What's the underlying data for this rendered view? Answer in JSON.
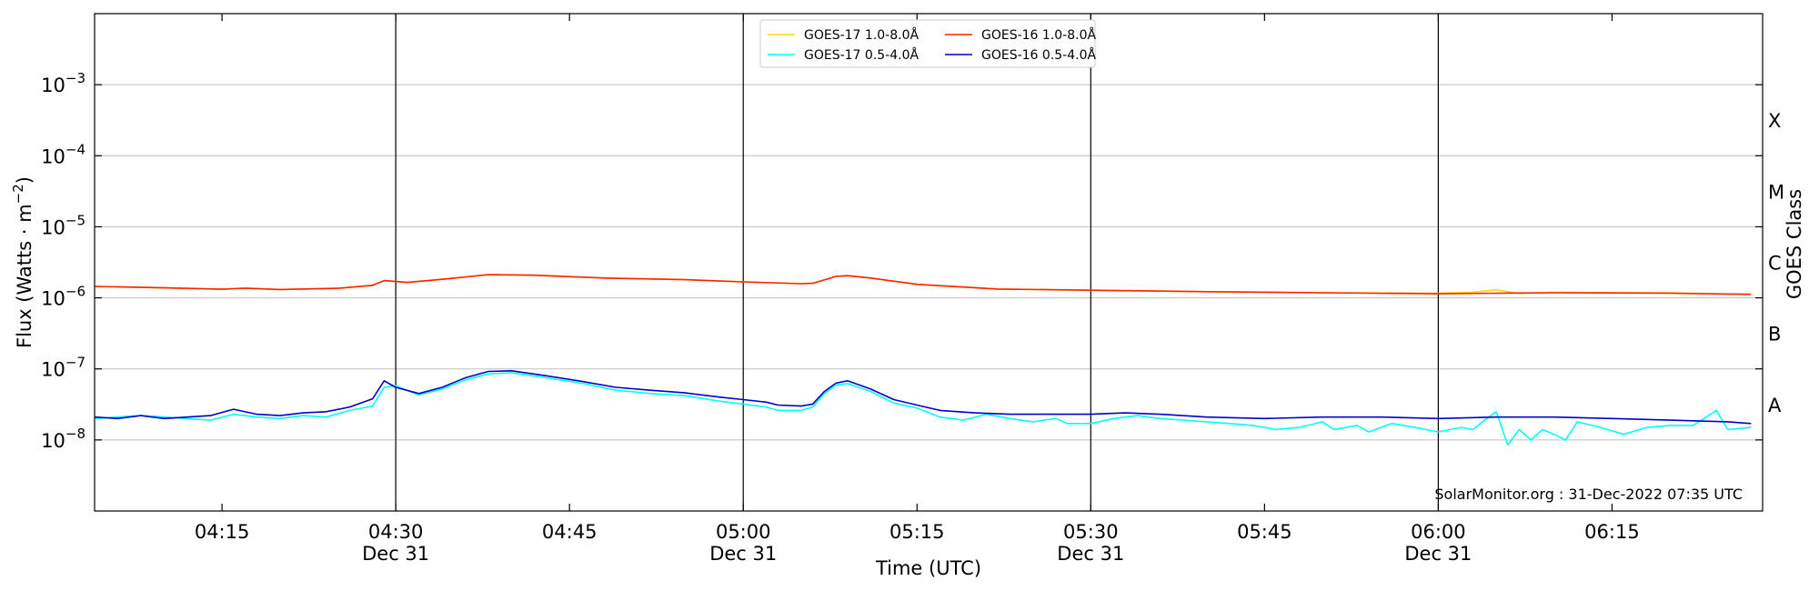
{
  "chart_data": {
    "type": "line",
    "xlabel": "Time (UTC)",
    "ylabel_main": "Flux (Watts · m",
    "ylabel_sup": "−2",
    "ylabel_close": ")",
    "right_ylabel": "GOES Class",
    "credit": "SolarMonitor.org : 31-Dec-2022 07:35 UTC",
    "xlim": [
      "04:04",
      "06:28"
    ],
    "ylim": [
      1e-09,
      0.01
    ],
    "yscale": "log",
    "y_ticks": [
      {
        "value": 1e-08,
        "base": "10",
        "exp": "−8"
      },
      {
        "value": 1e-07,
        "base": "10",
        "exp": "−7"
      },
      {
        "value": 1e-06,
        "base": "10",
        "exp": "−6"
      },
      {
        "value": 1e-05,
        "base": "10",
        "exp": "−5"
      },
      {
        "value": 0.0001,
        "base": "10",
        "exp": "−4"
      },
      {
        "value": 0.001,
        "base": "10",
        "exp": "−3"
      }
    ],
    "x_ticks": [
      {
        "time": "04:15",
        "label": "04:15",
        "date": ""
      },
      {
        "time": "04:30",
        "label": "04:30",
        "date": "Dec 31"
      },
      {
        "time": "04:45",
        "label": "04:45",
        "date": ""
      },
      {
        "time": "05:00",
        "label": "05:00",
        "date": "Dec 31"
      },
      {
        "time": "05:15",
        "label": "05:15",
        "date": ""
      },
      {
        "time": "05:30",
        "label": "05:30",
        "date": "Dec 31"
      },
      {
        "time": "05:45",
        "label": "05:45",
        "date": ""
      },
      {
        "time": "06:00",
        "label": "06:00",
        "date": "Dec 31"
      },
      {
        "time": "06:15",
        "label": "06:15",
        "date": ""
      }
    ],
    "vertical_lines": [
      "04:30",
      "05:00",
      "05:30",
      "06:00"
    ],
    "grid": "horizontal",
    "goes_classes": [
      {
        "label": "A",
        "value": 3.16e-08
      },
      {
        "label": "B",
        "value": 3.16e-07
      },
      {
        "label": "C",
        "value": 3.16e-06
      },
      {
        "label": "M",
        "value": 3.16e-05
      },
      {
        "label": "X",
        "value": 0.000316
      }
    ],
    "legend_position": "top-center",
    "series": [
      {
        "name": "GOES-17 1.0-8.0Å",
        "color": "#FFD700",
        "points": [
          [
            "04:04",
            1.45e-06
          ],
          [
            "04:10",
            1.38e-06
          ],
          [
            "04:15",
            1.32e-06
          ],
          [
            "04:17",
            1.37e-06
          ],
          [
            "04:20",
            1.31e-06
          ],
          [
            "04:25",
            1.36e-06
          ],
          [
            "04:28",
            1.5e-06
          ],
          [
            "04:29",
            1.75e-06
          ],
          [
            "04:31",
            1.65e-06
          ],
          [
            "04:34",
            1.82e-06
          ],
          [
            "04:38",
            2.12e-06
          ],
          [
            "04:42",
            2.08e-06
          ],
          [
            "04:48",
            1.9e-06
          ],
          [
            "04:55",
            1.8e-06
          ],
          [
            "05:00",
            1.68e-06
          ],
          [
            "05:05",
            1.58e-06
          ],
          [
            "05:06",
            1.6e-06
          ],
          [
            "05:08",
            2e-06
          ],
          [
            "05:09",
            2.05e-06
          ],
          [
            "05:11",
            1.9e-06
          ],
          [
            "05:15",
            1.55e-06
          ],
          [
            "05:22",
            1.33e-06
          ],
          [
            "05:30",
            1.28e-06
          ],
          [
            "05:40",
            1.22e-06
          ],
          [
            "05:50",
            1.18e-06
          ],
          [
            "06:00",
            1.16e-06
          ],
          [
            "06:03",
            1.2e-06
          ],
          [
            "06:05",
            1.3e-06
          ],
          [
            "06:07",
            1.15e-06
          ],
          [
            "06:10",
            1.2e-06
          ],
          [
            "06:15",
            1.18e-06
          ],
          [
            "06:20",
            1.18e-06
          ],
          [
            "06:25",
            1.13e-06
          ],
          [
            "06:27",
            1.12e-06
          ]
        ]
      },
      {
        "name": "GOES-16 1.0-8.0Å",
        "color": "#FF2200",
        "points": [
          [
            "04:04",
            1.45e-06
          ],
          [
            "04:10",
            1.38e-06
          ],
          [
            "04:15",
            1.32e-06
          ],
          [
            "04:17",
            1.37e-06
          ],
          [
            "04:20",
            1.31e-06
          ],
          [
            "04:25",
            1.36e-06
          ],
          [
            "04:28",
            1.5e-06
          ],
          [
            "04:29",
            1.75e-06
          ],
          [
            "04:31",
            1.65e-06
          ],
          [
            "04:34",
            1.82e-06
          ],
          [
            "04:38",
            2.12e-06
          ],
          [
            "04:42",
            2.08e-06
          ],
          [
            "04:48",
            1.9e-06
          ],
          [
            "04:55",
            1.8e-06
          ],
          [
            "05:00",
            1.68e-06
          ],
          [
            "05:05",
            1.58e-06
          ],
          [
            "05:06",
            1.6e-06
          ],
          [
            "05:08",
            2e-06
          ],
          [
            "05:09",
            2.05e-06
          ],
          [
            "05:11",
            1.9e-06
          ],
          [
            "05:15",
            1.55e-06
          ],
          [
            "05:22",
            1.33e-06
          ],
          [
            "05:30",
            1.28e-06
          ],
          [
            "05:40",
            1.22e-06
          ],
          [
            "05:50",
            1.18e-06
          ],
          [
            "06:00",
            1.14e-06
          ],
          [
            "06:05",
            1.16e-06
          ],
          [
            "06:10",
            1.18e-06
          ],
          [
            "06:15",
            1.17e-06
          ],
          [
            "06:20",
            1.16e-06
          ],
          [
            "06:25",
            1.13e-06
          ],
          [
            "06:27",
            1.12e-06
          ]
        ]
      },
      {
        "name": "GOES-17 0.5-4.0Å",
        "color": "#00FFFF",
        "points": [
          [
            "04:04",
            2e-08
          ],
          [
            "04:06",
            2.1e-08
          ],
          [
            "04:08",
            2.2e-08
          ],
          [
            "04:10",
            2.1e-08
          ],
          [
            "04:12",
            2e-08
          ],
          [
            "04:14",
            1.9e-08
          ],
          [
            "04:16",
            2.3e-08
          ],
          [
            "04:18",
            2.1e-08
          ],
          [
            "04:20",
            2e-08
          ],
          [
            "04:22",
            2.2e-08
          ],
          [
            "04:24",
            2.1e-08
          ],
          [
            "04:26",
            2.6e-08
          ],
          [
            "04:28",
            3e-08
          ],
          [
            "04:29",
            5.5e-08
          ],
          [
            "04:30",
            5.8e-08
          ],
          [
            "04:32",
            4.3e-08
          ],
          [
            "04:34",
            5.2e-08
          ],
          [
            "04:36",
            7e-08
          ],
          [
            "04:38",
            8.5e-08
          ],
          [
            "04:40",
            8.8e-08
          ],
          [
            "04:43",
            7.5e-08
          ],
          [
            "04:46",
            6.3e-08
          ],
          [
            "04:49",
            5e-08
          ],
          [
            "04:52",
            4.5e-08
          ],
          [
            "04:55",
            4.2e-08
          ],
          [
            "04:58",
            3.5e-08
          ],
          [
            "05:00",
            3.2e-08
          ],
          [
            "05:02",
            2.9e-08
          ],
          [
            "05:03",
            2.6e-08
          ],
          [
            "05:05",
            2.6e-08
          ],
          [
            "05:06",
            2.9e-08
          ],
          [
            "05:07",
            4.5e-08
          ],
          [
            "05:08",
            5.9e-08
          ],
          [
            "05:09",
            6.2e-08
          ],
          [
            "05:11",
            4.8e-08
          ],
          [
            "05:13",
            3.3e-08
          ],
          [
            "05:15",
            2.8e-08
          ],
          [
            "05:17",
            2.1e-08
          ],
          [
            "05:19",
            1.9e-08
          ],
          [
            "05:21",
            2.3e-08
          ],
          [
            "05:23",
            2e-08
          ],
          [
            "05:25",
            1.8e-08
          ],
          [
            "05:27",
            2e-08
          ],
          [
            "05:28",
            1.7e-08
          ],
          [
            "05:30",
            1.7e-08
          ],
          [
            "05:32",
            2e-08
          ],
          [
            "05:34",
            2.2e-08
          ],
          [
            "05:36",
            2e-08
          ],
          [
            "05:38",
            1.9e-08
          ],
          [
            "05:40",
            1.8e-08
          ],
          [
            "05:42",
            1.7e-08
          ],
          [
            "05:44",
            1.6e-08
          ],
          [
            "05:46",
            1.4e-08
          ],
          [
            "05:48",
            1.5e-08
          ],
          [
            "05:50",
            1.8e-08
          ],
          [
            "05:51",
            1.4e-08
          ],
          [
            "05:53",
            1.6e-08
          ],
          [
            "05:54",
            1.3e-08
          ],
          [
            "05:56",
            1.7e-08
          ],
          [
            "05:58",
            1.5e-08
          ],
          [
            "06:00",
            1.3e-08
          ],
          [
            "06:02",
            1.5e-08
          ],
          [
            "06:03",
            1.4e-08
          ],
          [
            "06:04",
            1.9e-08
          ],
          [
            "06:05",
            2.5e-08
          ],
          [
            "06:06",
            8.5e-09
          ],
          [
            "06:07",
            1.4e-08
          ],
          [
            "06:08",
            1e-08
          ],
          [
            "06:09",
            1.4e-08
          ],
          [
            "06:10",
            1.2e-08
          ],
          [
            "06:11",
            1e-08
          ],
          [
            "06:12",
            1.8e-08
          ],
          [
            "06:14",
            1.5e-08
          ],
          [
            "06:16",
            1.2e-08
          ],
          [
            "06:18",
            1.5e-08
          ],
          [
            "06:20",
            1.6e-08
          ],
          [
            "06:22",
            1.6e-08
          ],
          [
            "06:24",
            2.6e-08
          ],
          [
            "06:25",
            1.4e-08
          ],
          [
            "06:27",
            1.5e-08
          ]
        ]
      },
      {
        "name": "GOES-16 0.5-4.0Å",
        "color": "#0000CC",
        "points": [
          [
            "04:04",
            2.1e-08
          ],
          [
            "04:06",
            2e-08
          ],
          [
            "04:08",
            2.2e-08
          ],
          [
            "04:10",
            2e-08
          ],
          [
            "04:12",
            2.1e-08
          ],
          [
            "04:14",
            2.2e-08
          ],
          [
            "04:16",
            2.7e-08
          ],
          [
            "04:18",
            2.3e-08
          ],
          [
            "04:20",
            2.2e-08
          ],
          [
            "04:22",
            2.4e-08
          ],
          [
            "04:24",
            2.5e-08
          ],
          [
            "04:26",
            2.9e-08
          ],
          [
            "04:28",
            3.8e-08
          ],
          [
            "04:29",
            6.8e-08
          ],
          [
            "04:30",
            5.5e-08
          ],
          [
            "04:32",
            4.5e-08
          ],
          [
            "04:34",
            5.5e-08
          ],
          [
            "04:36",
            7.5e-08
          ],
          [
            "04:38",
            9.2e-08
          ],
          [
            "04:40",
            9.4e-08
          ],
          [
            "04:43",
            8e-08
          ],
          [
            "04:46",
            6.7e-08
          ],
          [
            "04:49",
            5.5e-08
          ],
          [
            "04:52",
            5e-08
          ],
          [
            "04:55",
            4.6e-08
          ],
          [
            "04:58",
            4e-08
          ],
          [
            "05:00",
            3.7e-08
          ],
          [
            "05:02",
            3.4e-08
          ],
          [
            "05:03",
            3.1e-08
          ],
          [
            "05:05",
            3e-08
          ],
          [
            "05:06",
            3.2e-08
          ],
          [
            "05:07",
            4.8e-08
          ],
          [
            "05:08",
            6.3e-08
          ],
          [
            "05:09",
            6.8e-08
          ],
          [
            "05:11",
            5.2e-08
          ],
          [
            "05:13",
            3.7e-08
          ],
          [
            "05:15",
            3.1e-08
          ],
          [
            "05:17",
            2.6e-08
          ],
          [
            "05:20",
            2.4e-08
          ],
          [
            "05:23",
            2.3e-08
          ],
          [
            "05:26",
            2.3e-08
          ],
          [
            "05:30",
            2.3e-08
          ],
          [
            "05:33",
            2.4e-08
          ],
          [
            "05:36",
            2.3e-08
          ],
          [
            "05:40",
            2.1e-08
          ],
          [
            "05:45",
            2e-08
          ],
          [
            "05:50",
            2.1e-08
          ],
          [
            "05:55",
            2.1e-08
          ],
          [
            "06:00",
            2e-08
          ],
          [
            "06:05",
            2.1e-08
          ],
          [
            "06:10",
            2.1e-08
          ],
          [
            "06:15",
            2e-08
          ],
          [
            "06:20",
            1.9e-08
          ],
          [
            "06:25",
            1.8e-08
          ],
          [
            "06:27",
            1.7e-08
          ]
        ]
      }
    ]
  }
}
